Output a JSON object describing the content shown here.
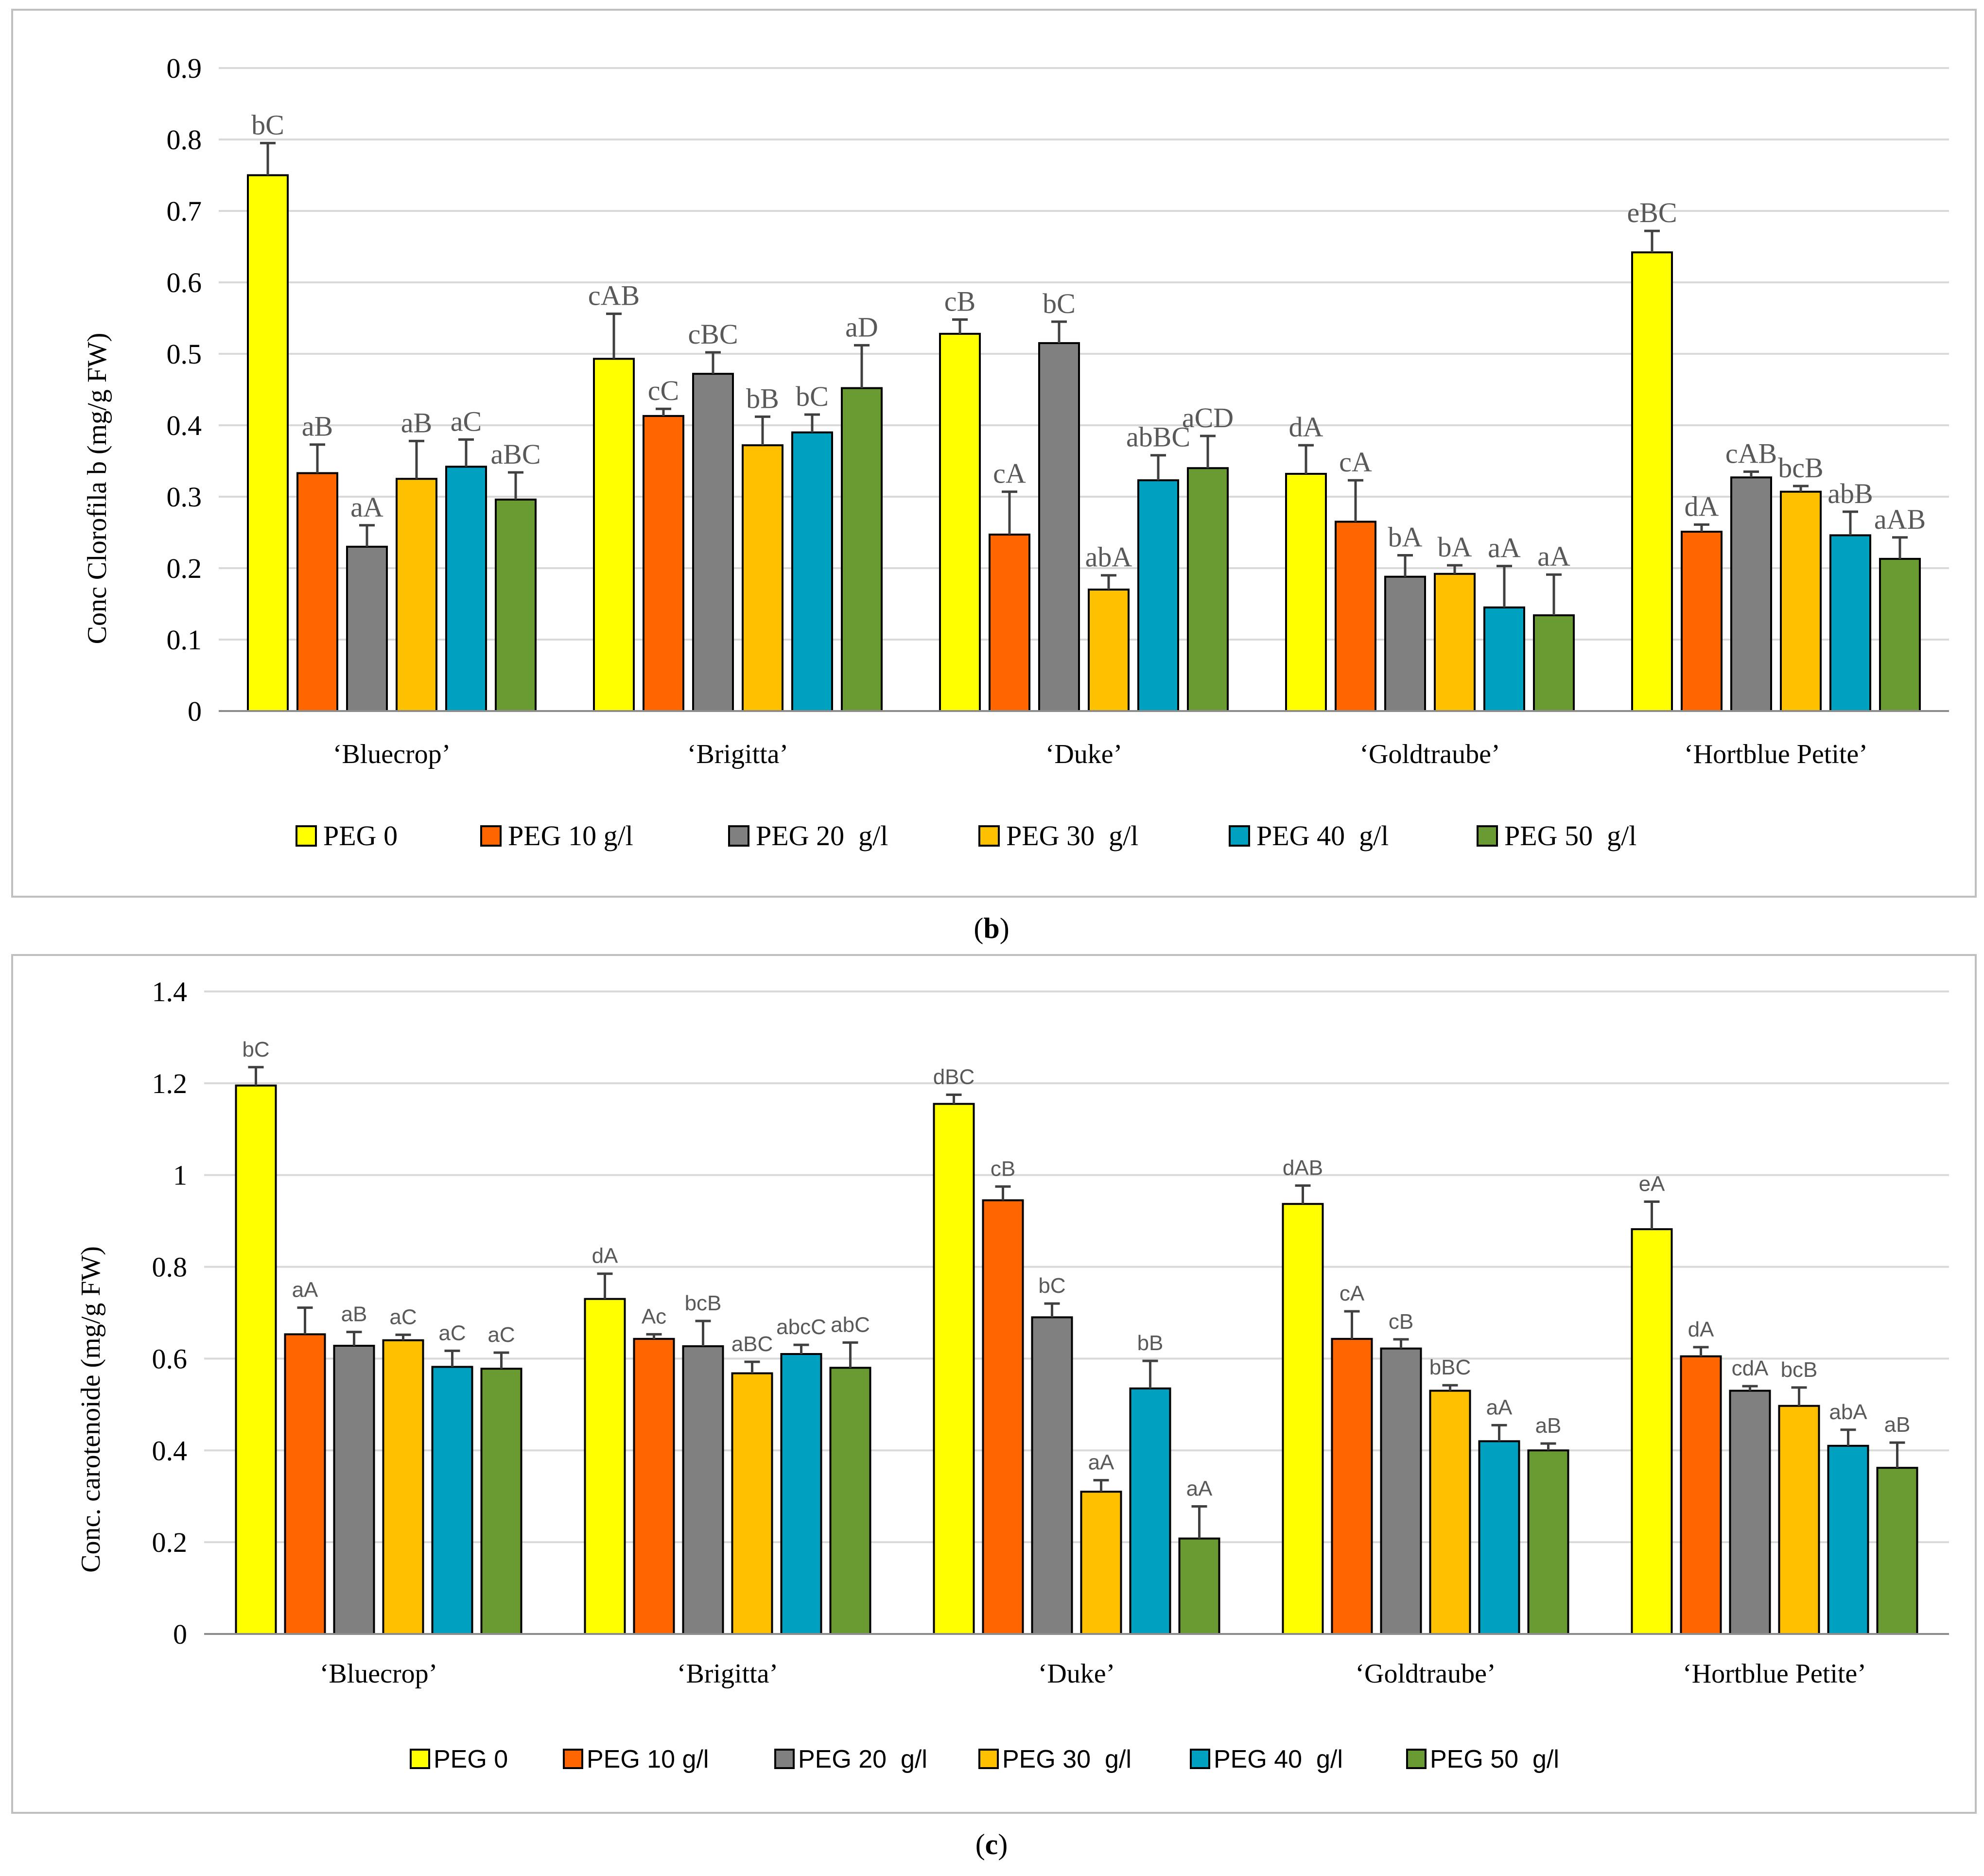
{
  "colors": {
    "PEG 0": "#ffff00",
    "PEG 10": "#ff6600",
    "PEG 20": "#808080",
    "PEG 30": "#ffc000",
    "PEG 40": "#00a0c0",
    "PEG 50": "#6a9a32"
  },
  "chart_data": [
    {
      "type": "bar",
      "caption_letter": "b",
      "ylabel": "Conc Clorofila b (mg/g FW)",
      "ylim": [
        0,
        0.9
      ],
      "yticks": [
        "0",
        "0.1",
        "0.2",
        "0.3",
        "0.4",
        "0.5",
        "0.6",
        "0.7",
        "0.8",
        "0.9"
      ],
      "grid": true,
      "legend_position": "bottom",
      "categories": [
        "‘Bluecrop’",
        "‘Brigitta’",
        "‘Duke’",
        "‘Goldtraube’",
        "‘Hortblue Petite’"
      ],
      "series": [
        {
          "name": "PEG 0",
          "values": [
            0.75,
            0.493,
            0.528,
            0.332,
            0.642
          ],
          "errors": [
            0.045,
            0.063,
            0.02,
            0.04,
            0.03
          ],
          "labels": [
            "bC",
            "cAB",
            "cB",
            "dA",
            "eBC"
          ]
        },
        {
          "name": "PEG 10 g/l",
          "values": [
            0.333,
            0.413,
            0.247,
            0.265,
            0.251
          ],
          "errors": [
            0.04,
            0.01,
            0.06,
            0.058,
            0.01
          ],
          "labels": [
            "aB",
            "cC",
            "cA",
            "cA",
            "dA"
          ]
        },
        {
          "name": "PEG 20  g/l",
          "values": [
            0.23,
            0.472,
            0.515,
            0.188,
            0.327
          ],
          "errors": [
            0.03,
            0.03,
            0.03,
            0.03,
            0.008
          ],
          "labels": [
            "aA",
            "cBC",
            "bC",
            "bA",
            "cAB"
          ]
        },
        {
          "name": "PEG 30  g/l",
          "values": [
            0.325,
            0.372,
            0.17,
            0.192,
            0.307
          ],
          "errors": [
            0.053,
            0.04,
            0.02,
            0.012,
            0.008
          ],
          "labels": [
            "aB",
            "bB",
            "abA",
            "bA",
            "bcB"
          ]
        },
        {
          "name": "PEG 40  g/l",
          "values": [
            0.342,
            0.39,
            0.323,
            0.145,
            0.246
          ],
          "errors": [
            0.038,
            0.025,
            0.035,
            0.058,
            0.033
          ],
          "labels": [
            "aC",
            "bC",
            "abBC",
            "aA",
            "abB"
          ]
        },
        {
          "name": "PEG 50  g/l",
          "values": [
            0.296,
            0.452,
            0.34,
            0.134,
            0.213
          ],
          "errors": [
            0.038,
            0.06,
            0.045,
            0.057,
            0.03
          ],
          "labels": [
            "aBC",
            "aD",
            "aCD",
            "aA",
            "aAB"
          ]
        }
      ]
    },
    {
      "type": "bar",
      "caption_letter": "c",
      "ylabel": "Conc. carotenoide (mg/g FW)",
      "ylim": [
        0,
        1.4
      ],
      "yticks": [
        "0",
        "0.2",
        "0.4",
        "0.6",
        "0.8",
        "1",
        "1.2",
        "1.4"
      ],
      "grid": true,
      "legend_position": "bottom",
      "categories": [
        "‘Bluecrop’",
        "‘Brigitta’",
        "‘Duke’",
        "‘Goldtraube’",
        "‘Hortblue Petite’"
      ],
      "series": [
        {
          "name": "PEG 0",
          "values": [
            1.195,
            0.73,
            1.155,
            0.937,
            0.882
          ],
          "errors": [
            0.04,
            0.055,
            0.02,
            0.04,
            0.06
          ],
          "labels": [
            "bC",
            "dA",
            "dBC",
            "dAB",
            "eA"
          ]
        },
        {
          "name": "PEG 10 g/l",
          "values": [
            0.653,
            0.643,
            0.945,
            0.643,
            0.605
          ],
          "errors": [
            0.058,
            0.01,
            0.03,
            0.06,
            0.02
          ],
          "labels": [
            "aA",
            "Ac",
            "cB",
            "cA",
            "dA"
          ]
        },
        {
          "name": "PEG 20  g/l",
          "values": [
            0.628,
            0.627,
            0.69,
            0.622,
            0.53
          ],
          "errors": [
            0.03,
            0.055,
            0.03,
            0.02,
            0.01
          ],
          "labels": [
            "aB",
            "bcB",
            "bC",
            "cB",
            "cdA"
          ]
        },
        {
          "name": "PEG 30  g/l",
          "values": [
            0.64,
            0.568,
            0.31,
            0.53,
            0.497
          ],
          "errors": [
            0.012,
            0.025,
            0.025,
            0.012,
            0.04
          ],
          "labels": [
            "aC",
            "aBC",
            "aA",
            "bBC",
            "bcB"
          ]
        },
        {
          "name": "PEG 40  g/l",
          "values": [
            0.582,
            0.61,
            0.535,
            0.42,
            0.41
          ],
          "errors": [
            0.035,
            0.02,
            0.06,
            0.035,
            0.035
          ],
          "labels": [
            "aC",
            "abcC",
            "bB",
            "aA",
            "abA"
          ]
        },
        {
          "name": "PEG 50  g/l",
          "values": [
            0.578,
            0.58,
            0.208,
            0.4,
            0.362
          ],
          "errors": [
            0.035,
            0.055,
            0.07,
            0.015,
            0.055
          ],
          "labels": [
            "aC",
            "abC",
            "aA",
            "aB",
            "aB"
          ]
        }
      ]
    }
  ]
}
